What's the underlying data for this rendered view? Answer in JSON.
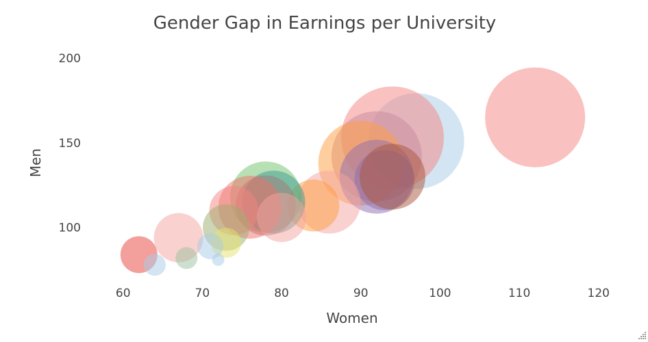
{
  "chart_data": {
    "type": "scatter",
    "title": "Gender Gap in Earnings per University",
    "xlabel": "Women",
    "ylabel": "Men",
    "xlim": [
      57,
      124
    ],
    "ylim": [
      68,
      208
    ],
    "xticks": [
      "60",
      "70",
      "80",
      "90",
      "100",
      "110",
      "120"
    ],
    "yticks": [
      "100",
      "150",
      "200"
    ],
    "bubble_size_scale": "relative",
    "opacity": 0.5,
    "points": [
      {
        "x": 112,
        "y": 165,
        "size": 73,
        "color": "#f4847f"
      },
      {
        "x": 97,
        "y": 151,
        "size": 70,
        "color": "#a7cce5"
      },
      {
        "x": 94,
        "y": 153,
        "size": 75,
        "color": "#f4847f"
      },
      {
        "x": 92,
        "y": 142,
        "size": 66,
        "color": "#c88b9f"
      },
      {
        "x": 90,
        "y": 138,
        "size": 62,
        "color": "#ff9d3f"
      },
      {
        "x": 92,
        "y": 130,
        "size": 54,
        "color": "#8e6db0"
      },
      {
        "x": 93,
        "y": 128,
        "size": 44,
        "color": "#8e6db0"
      },
      {
        "x": 94,
        "y": 130,
        "size": 48,
        "color": "#a9553a"
      },
      {
        "x": 86,
        "y": 115,
        "size": 46,
        "color": "#f4a4a0"
      },
      {
        "x": 84,
        "y": 113,
        "size": 38,
        "color": "#ff9d3f"
      },
      {
        "x": 78,
        "y": 118,
        "size": 52,
        "color": "#70c16c"
      },
      {
        "x": 79,
        "y": 115,
        "size": 46,
        "color": "#3d9a8f"
      },
      {
        "x": 78,
        "y": 113,
        "size": 44,
        "color": "#a07777"
      },
      {
        "x": 76,
        "y": 112,
        "size": 46,
        "color": "#ef6f6a"
      },
      {
        "x": 74,
        "y": 110,
        "size": 36,
        "color": "#f4847f"
      },
      {
        "x": 80,
        "y": 106,
        "size": 36,
        "color": "#f4a4a0"
      },
      {
        "x": 73,
        "y": 100,
        "size": 34,
        "color": "#9aad6b"
      },
      {
        "x": 67,
        "y": 94,
        "size": 36,
        "color": "#f4a4a0"
      },
      {
        "x": 73,
        "y": 91,
        "size": 22,
        "color": "#e8e26d"
      },
      {
        "x": 71,
        "y": 89,
        "size": 19,
        "color": "#a7cce5"
      },
      {
        "x": 62,
        "y": 84,
        "size": 27,
        "color": "#e8413b"
      },
      {
        "x": 68,
        "y": 82,
        "size": 16,
        "color": "#9bc2a0"
      },
      {
        "x": 72,
        "y": 81,
        "size": 9,
        "color": "#a7cce5"
      },
      {
        "x": 64,
        "y": 78,
        "size": 16,
        "color": "#a7cce5"
      }
    ]
  }
}
